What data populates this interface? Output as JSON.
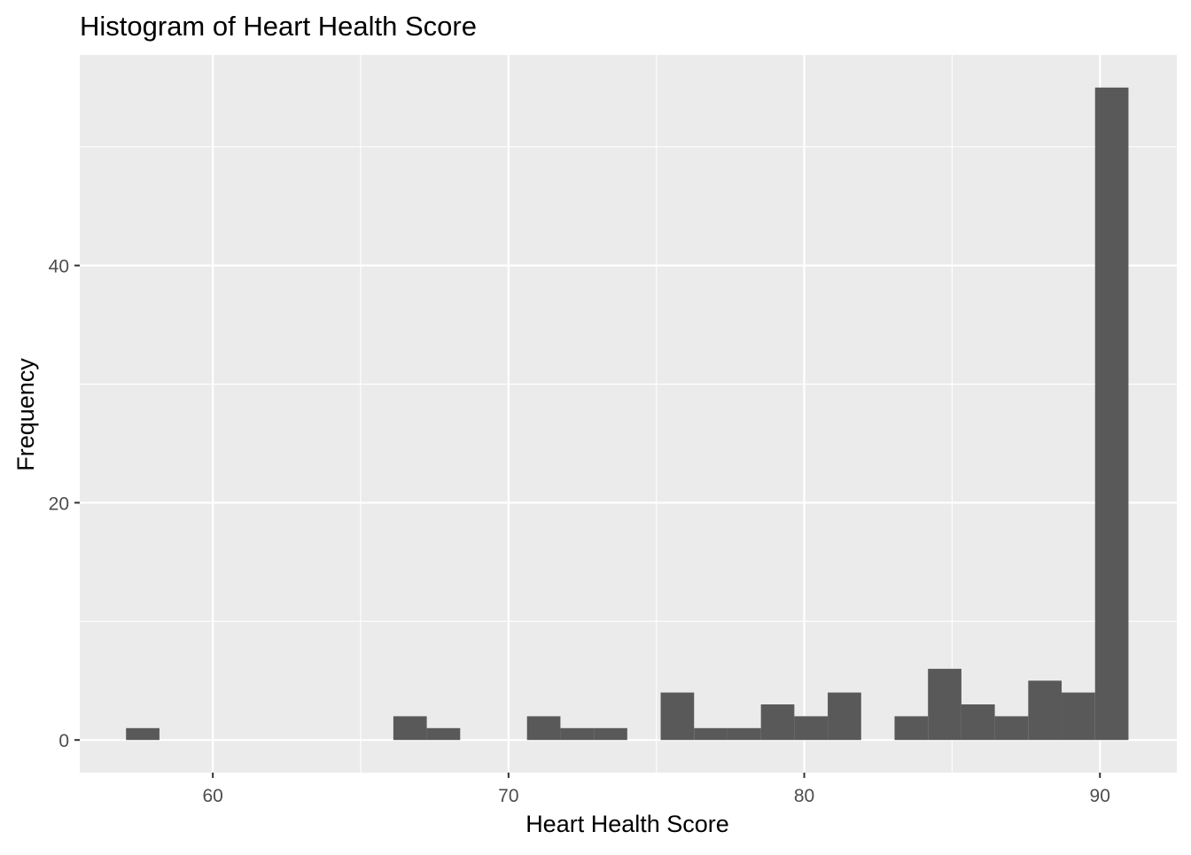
{
  "chart_data": {
    "type": "bar",
    "title": "Histogram of Heart Health Score",
    "xlabel": "Heart Health Score",
    "ylabel": "Frequency",
    "bin_width": 1.13,
    "bins": [
      {
        "x": 57.63,
        "count": 1
      },
      {
        "x": 58.76,
        "count": 0
      },
      {
        "x": 59.89,
        "count": 0
      },
      {
        "x": 61.02,
        "count": 0
      },
      {
        "x": 62.15,
        "count": 0
      },
      {
        "x": 63.28,
        "count": 0
      },
      {
        "x": 64.41,
        "count": 0
      },
      {
        "x": 65.54,
        "count": 0
      },
      {
        "x": 66.67,
        "count": 2
      },
      {
        "x": 67.8,
        "count": 1
      },
      {
        "x": 68.93,
        "count": 0
      },
      {
        "x": 70.06,
        "count": 0
      },
      {
        "x": 71.19,
        "count": 2
      },
      {
        "x": 72.32,
        "count": 1
      },
      {
        "x": 73.45,
        "count": 1
      },
      {
        "x": 74.58,
        "count": 0
      },
      {
        "x": 75.71,
        "count": 4
      },
      {
        "x": 76.84,
        "count": 1
      },
      {
        "x": 77.97,
        "count": 1
      },
      {
        "x": 79.1,
        "count": 3
      },
      {
        "x": 80.23,
        "count": 2
      },
      {
        "x": 81.36,
        "count": 4
      },
      {
        "x": 82.49,
        "count": 0
      },
      {
        "x": 83.62,
        "count": 2
      },
      {
        "x": 84.75,
        "count": 6
      },
      {
        "x": 85.88,
        "count": 3
      },
      {
        "x": 87.01,
        "count": 2
      },
      {
        "x": 88.14,
        "count": 5
      },
      {
        "x": 89.27,
        "count": 4
      },
      {
        "x": 90.4,
        "count": 55
      }
    ],
    "xlim": [
      55.5,
      92.6
    ],
    "ylim": [
      -2.75,
      57.75
    ],
    "x_ticks": [
      60,
      70,
      80,
      90
    ],
    "x_minor_ticks": [
      65,
      75,
      85
    ],
    "y_ticks": [
      0,
      20,
      40
    ],
    "y_minor_ticks": [
      10,
      30,
      50
    ],
    "grid": true,
    "colors": {
      "panel": "#EBEBEB",
      "grid": "#FFFFFF",
      "bar": "#595959",
      "tick_text": "#4D4D4D",
      "tick_mark": "#333333"
    }
  }
}
